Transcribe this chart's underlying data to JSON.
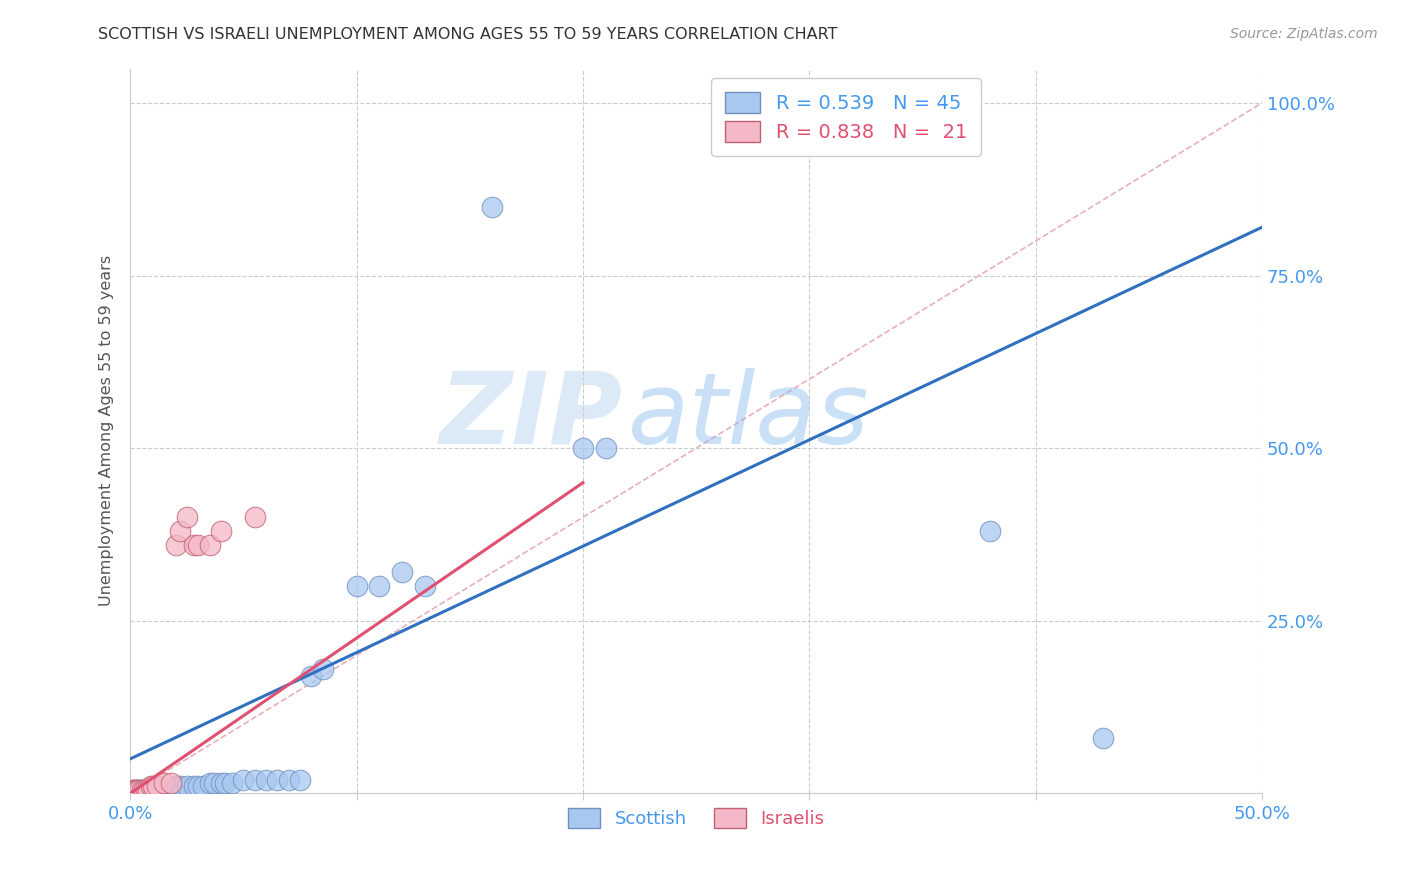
{
  "title": "SCOTTISH VS ISRAELI UNEMPLOYMENT AMONG AGES 55 TO 59 YEARS CORRELATION CHART",
  "source": "Source: ZipAtlas.com",
  "ylabel": "Unemployment Among Ages 55 to 59 years",
  "xlim": [
    0.0,
    0.5
  ],
  "ylim": [
    0.0,
    1.05
  ],
  "xticks": [
    0.0,
    0.1,
    0.2,
    0.3,
    0.4,
    0.5
  ],
  "xticklabels": [
    "0.0%",
    "",
    "",
    "",
    "",
    "50.0%"
  ],
  "yticks_right": [
    0.0,
    0.25,
    0.5,
    0.75,
    1.0
  ],
  "yticklabels_right": [
    "",
    "25.0%",
    "50.0%",
    "75.0%",
    "100.0%"
  ],
  "legend_r1": "R = 0.539   N = 45",
  "legend_r2": "R = 0.838   N =  21",
  "blue_color": "#A8C8F0",
  "pink_color": "#F4B8C8",
  "diag_color": "#E8B0B8",
  "line_blue_color": "#3070C0",
  "line_pink_color": "#E05070",
  "background_color": "#FFFFFF",
  "watermark_zip": "ZIP",
  "watermark_atlas": "atlas",
  "scottish_points": [
    [
      0.001,
      0.005
    ],
    [
      0.002,
      0.005
    ],
    [
      0.003,
      0.005
    ],
    [
      0.004,
      0.005
    ],
    [
      0.005,
      0.005
    ],
    [
      0.006,
      0.005
    ],
    [
      0.007,
      0.005
    ],
    [
      0.008,
      0.005
    ],
    [
      0.009,
      0.005
    ],
    [
      0.01,
      0.005
    ],
    [
      0.011,
      0.005
    ],
    [
      0.012,
      0.005
    ],
    [
      0.013,
      0.005
    ],
    [
      0.014,
      0.005
    ],
    [
      0.015,
      0.005
    ],
    [
      0.016,
      0.005
    ],
    [
      0.018,
      0.005
    ],
    [
      0.02,
      0.01
    ],
    [
      0.022,
      0.01
    ],
    [
      0.025,
      0.01
    ],
    [
      0.028,
      0.01
    ],
    [
      0.03,
      0.01
    ],
    [
      0.032,
      0.01
    ],
    [
      0.035,
      0.015
    ],
    [
      0.037,
      0.015
    ],
    [
      0.04,
      0.015
    ],
    [
      0.042,
      0.015
    ],
    [
      0.045,
      0.015
    ],
    [
      0.05,
      0.02
    ],
    [
      0.055,
      0.02
    ],
    [
      0.06,
      0.02
    ],
    [
      0.065,
      0.02
    ],
    [
      0.07,
      0.02
    ],
    [
      0.075,
      0.02
    ],
    [
      0.08,
      0.17
    ],
    [
      0.085,
      0.18
    ],
    [
      0.1,
      0.3
    ],
    [
      0.11,
      0.3
    ],
    [
      0.12,
      0.32
    ],
    [
      0.13,
      0.3
    ],
    [
      0.2,
      0.5
    ],
    [
      0.21,
      0.5
    ],
    [
      0.38,
      0.38
    ],
    [
      0.43,
      0.08
    ],
    [
      0.16,
      0.85
    ]
  ],
  "israeli_points": [
    [
      0.001,
      0.005
    ],
    [
      0.002,
      0.005
    ],
    [
      0.003,
      0.005
    ],
    [
      0.004,
      0.005
    ],
    [
      0.005,
      0.005
    ],
    [
      0.006,
      0.005
    ],
    [
      0.007,
      0.005
    ],
    [
      0.008,
      0.005
    ],
    [
      0.009,
      0.01
    ],
    [
      0.01,
      0.01
    ],
    [
      0.012,
      0.01
    ],
    [
      0.015,
      0.015
    ],
    [
      0.018,
      0.015
    ],
    [
      0.02,
      0.36
    ],
    [
      0.022,
      0.38
    ],
    [
      0.025,
      0.4
    ],
    [
      0.028,
      0.36
    ],
    [
      0.03,
      0.36
    ],
    [
      0.035,
      0.36
    ],
    [
      0.04,
      0.38
    ],
    [
      0.055,
      0.4
    ]
  ],
  "blue_line_x": [
    0.0,
    0.5
  ],
  "blue_line_y": [
    0.05,
    0.82
  ],
  "pink_line_x": [
    0.0,
    0.2
  ],
  "pink_line_y": [
    0.0,
    0.45
  ],
  "diag_line_x": [
    0.0,
    0.5
  ],
  "diag_line_y": [
    0.0,
    1.0
  ]
}
